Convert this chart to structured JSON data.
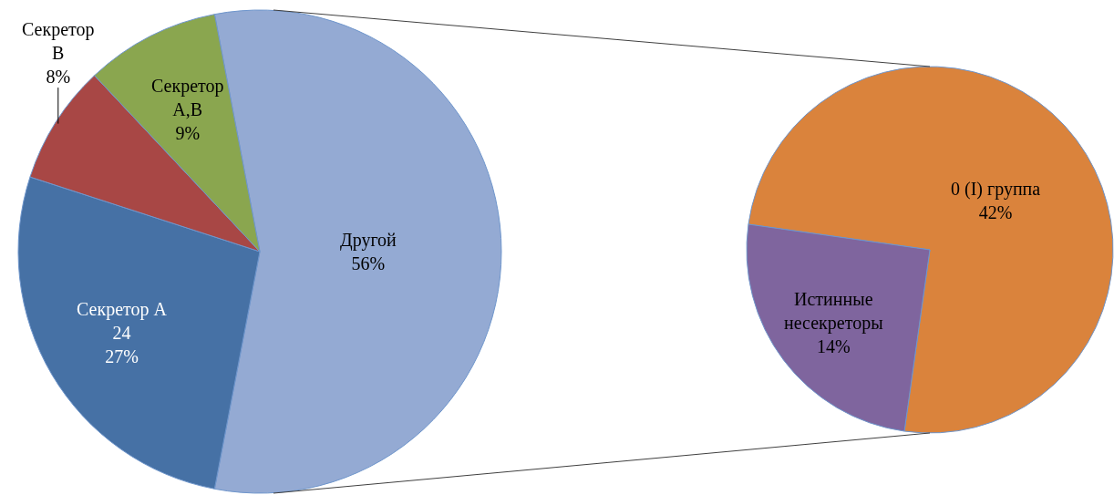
{
  "chart_data": [
    {
      "type": "pie",
      "categories": [
        "Другой",
        "Секретор А\n24",
        "Секретор\nВ",
        "Секретор\nА,В"
      ],
      "values": [
        56,
        27,
        8,
        9
      ],
      "colors": [
        "#94aad3",
        "#4671a5",
        "#a84745",
        "#8aa64f"
      ],
      "value_labels": [
        "56%",
        "27%",
        "8%",
        "9%"
      ]
    },
    {
      "type": "pie",
      "categories": [
        "0 (I) группа",
        "Истинные\nнесекреторы"
      ],
      "values": [
        42,
        14
      ],
      "colors": [
        "#da833c",
        "#7f659e"
      ],
      "value_labels": [
        "42%",
        "14%"
      ]
    }
  ]
}
